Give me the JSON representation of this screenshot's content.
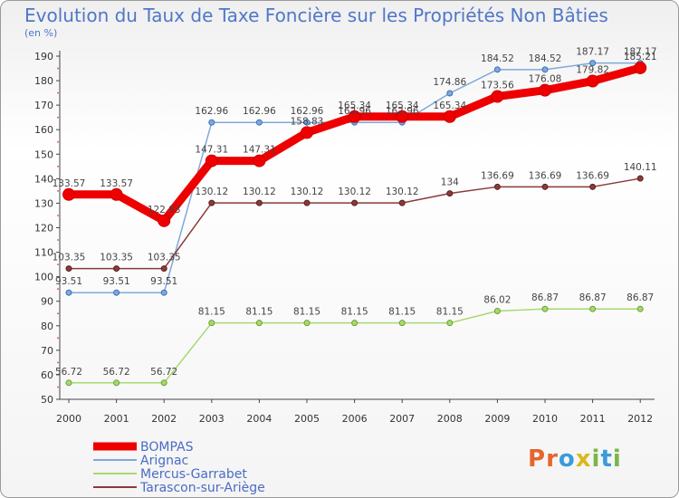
{
  "header": {
    "title": "Evolution du Taux de Taxe Foncière sur les Propriétés Non Bâties",
    "subtitle": "(en %)"
  },
  "brand": {
    "text": "Proxiti",
    "letters": [
      "P",
      "r",
      "o",
      "x",
      "i",
      "t",
      "i"
    ],
    "colors": [
      "#e8642c",
      "#e8642c",
      "#3b9ad9",
      "#d9b81c",
      "#7ab648",
      "#3b9ad9",
      "#7ab648"
    ]
  },
  "chart_data": {
    "type": "line",
    "x": [
      "2000",
      "2001",
      "2002",
      "2003",
      "2004",
      "2005",
      "2006",
      "2007",
      "2008",
      "2009",
      "2010",
      "2011",
      "2012"
    ],
    "ylim": [
      50,
      190
    ],
    "yticks": [
      50,
      60,
      70,
      80,
      90,
      100,
      110,
      120,
      130,
      140,
      150,
      160,
      170,
      180,
      190
    ],
    "grid": false,
    "legend_position": "bottom-left",
    "series": [
      {
        "name": "BOMPAS",
        "color": "#ee0000",
        "width": 9,
        "marker_r": 6.5,
        "values": [
          133.57,
          133.57,
          122.83,
          147.31,
          147.31,
          158.83,
          165.34,
          165.34,
          165.34,
          173.56,
          176.08,
          179.82,
          185.21
        ],
        "labels": [
          "133.57",
          "133.57",
          "122.83",
          "147.31",
          "147.31",
          "158.83",
          "165.34",
          "165.34",
          "165.34",
          "173.56",
          "176.08",
          "179.82",
          "185.21"
        ]
      },
      {
        "name": "Arignac",
        "color": "#7fa9dc",
        "width": 1.5,
        "marker_r": 3,
        "values": [
          93.51,
          93.51,
          93.51,
          162.96,
          162.96,
          162.96,
          162.96,
          162.96,
          174.86,
          184.52,
          184.52,
          187.17,
          187.17
        ],
        "labels": [
          "93.51",
          "93.51",
          "93.51",
          "162.96",
          "162.96",
          "162.96",
          "162.96",
          "162.96",
          "174.86",
          "184.52",
          "184.52",
          "187.17",
          "187.17"
        ]
      },
      {
        "name": "Mercus-Garrabet",
        "color": "#a8d870",
        "width": 1.5,
        "marker_r": 3,
        "values": [
          56.72,
          56.72,
          56.72,
          81.15,
          81.15,
          81.15,
          81.15,
          81.15,
          81.15,
          86.02,
          86.87,
          86.87,
          86.87
        ],
        "labels": [
          "56.72",
          "56.72",
          "56.72",
          "81.15",
          "81.15",
          "81.15",
          "81.15",
          "81.15",
          "81.15",
          "86.02",
          "86.87",
          "86.87",
          "86.87"
        ]
      },
      {
        "name": "Tarascon-sur-Ariège",
        "color": "#8b3a3a",
        "width": 1.5,
        "marker_r": 3,
        "values": [
          103.35,
          103.35,
          103.35,
          130.12,
          130.12,
          130.12,
          130.12,
          130.12,
          134,
          136.69,
          136.69,
          136.69,
          140.11
        ],
        "labels": [
          "103.35",
          "103.35",
          "103.35",
          "130.12",
          "130.12",
          "130.12",
          "130.12",
          "130.12",
          "134",
          "136.69",
          "136.69",
          "136.69",
          "140.11"
        ]
      }
    ]
  }
}
